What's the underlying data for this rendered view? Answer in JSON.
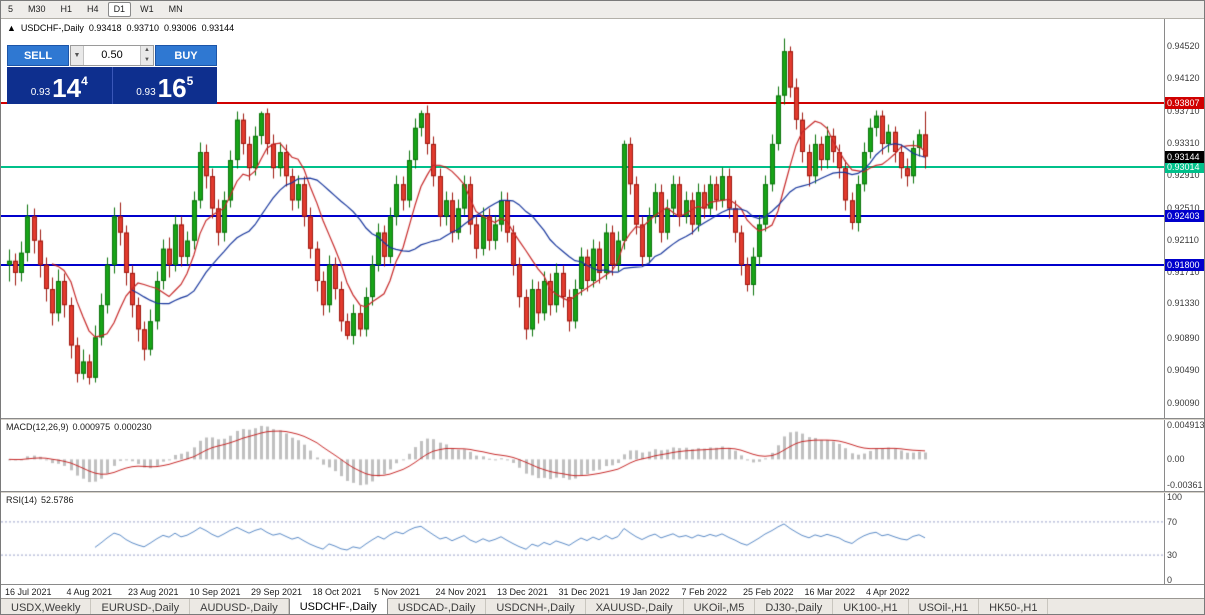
{
  "colors": {
    "up": "#18a418",
    "up_border": "#0a720a",
    "down": "#e23b2e",
    "down_border": "#9e170e",
    "ma_fast": "#c62828",
    "ma_slow": "#16359c",
    "macd_hist": "#c0c0c0",
    "macd_signal": "#c62828",
    "rsi_line": "#5a8ac6",
    "rsi_level": "#9aa0c8"
  },
  "toolbar": {
    "timeframes": [
      "5",
      "M30",
      "H1",
      "H4",
      "D1",
      "W1",
      "MN"
    ],
    "active": "D1"
  },
  "header": {
    "expand_icon": "▲",
    "symbol": "USDCHF-,Daily",
    "open": "0.93418",
    "high": "0.93710",
    "low": "0.93006",
    "close": "0.93144"
  },
  "trade_panel": {
    "sell_label": "SELL",
    "buy_label": "BUY",
    "volume": "0.50",
    "dropdown_icon": "▼",
    "spin_up_icon": "▲",
    "spin_down_icon": "▼",
    "sell_small": "0.93",
    "sell_big": "14",
    "sell_sup": "4",
    "buy_small": "0.93",
    "buy_big": "16",
    "buy_sup": "5"
  },
  "price_axis": {
    "labels": [
      "0.94520",
      "0.94120",
      "0.93710",
      "0.93310",
      "0.92910",
      "0.92510",
      "0.92110",
      "0.91710",
      "0.91330",
      "0.90890",
      "0.90490",
      "0.90090"
    ],
    "range": [
      0.899,
      0.9485
    ]
  },
  "levels": [
    {
      "value": 0.93807,
      "label": "0.93807",
      "color": "#d00000"
    },
    {
      "value": 0.93014,
      "label": "0.93014",
      "color": "#00c08a"
    },
    {
      "value": 0.92403,
      "label": "0.92403",
      "color": "#0000cc"
    },
    {
      "value": 0.918,
      "label": "0.91800",
      "color": "#0000cc"
    }
  ],
  "current_price": {
    "value": 0.93144,
    "label": "0.93144",
    "bg": "#000000"
  },
  "macd_panel": {
    "title": "MACD(12,26,9)",
    "value_main": "0.000975",
    "value_signal": "0.000230",
    "axis": [
      {
        "label": "0.004913",
        "value": 0.004913
      },
      {
        "label": "0.00",
        "value": 0
      },
      {
        "label": "-0.00361",
        "value": -0.00361
      }
    ],
    "range": [
      -0.0045,
      0.0056
    ]
  },
  "rsi_panel": {
    "title": "RSI(14)",
    "value": "52.5786",
    "axis": [
      {
        "label": "100",
        "value": 100
      },
      {
        "label": "70",
        "value": 70
      },
      {
        "label": "30",
        "value": 30
      },
      {
        "label": "0",
        "value": 0
      }
    ],
    "levels": [
      70,
      30
    ],
    "range": [
      0,
      100
    ]
  },
  "time_axis": {
    "labels": [
      "16 Jul 2021",
      "4 Aug 2021",
      "23 Aug 2021",
      "10 Sep 2021",
      "29 Sep 2021",
      "18 Oct 2021",
      "5 Nov 2021",
      "24 Nov 2021",
      "13 Dec 2021",
      "31 Dec 2021",
      "19 Jan 2022",
      "7 Feb 2022",
      "25 Feb 2022",
      "16 Mar 2022",
      "4 Apr 2022"
    ],
    "step": 10
  },
  "tabs": {
    "items": [
      "USDX,Weekly",
      "EURUSD-,Daily",
      "AUDUSD-,Daily",
      "USDCHF-,Daily",
      "USDCAD-,Daily",
      "USDCNH-,Daily",
      "XAUUSD-,Daily",
      "UKOil-,M5",
      "DJ30-,Daily",
      "UK100-,H1",
      "USOil-,H1",
      "HK50-,H1"
    ],
    "active": "USDCHF-,Daily"
  },
  "chart_data": {
    "type": "candlestick",
    "symbol": "USDCHF-,Daily",
    "ohlc_last": {
      "open": 0.93418,
      "high": 0.9371,
      "low": 0.93006,
      "close": 0.93144
    },
    "ma_fast_period": 8,
    "ma_slow_period": 21,
    "macd": {
      "fast": 12,
      "slow": 26,
      "signal": 9
    },
    "rsi_period": 14,
    "candles": [
      [
        0.918,
        0.92,
        0.916,
        0.9185
      ],
      [
        0.9185,
        0.9195,
        0.9155,
        0.917
      ],
      [
        0.917,
        0.921,
        0.916,
        0.9195
      ],
      [
        0.9195,
        0.9255,
        0.9185,
        0.924
      ],
      [
        0.924,
        0.925,
        0.9195,
        0.921
      ],
      [
        0.921,
        0.9225,
        0.9165,
        0.918
      ],
      [
        0.918,
        0.919,
        0.9135,
        0.915
      ],
      [
        0.915,
        0.9165,
        0.9105,
        0.912
      ],
      [
        0.912,
        0.9175,
        0.911,
        0.916
      ],
      [
        0.916,
        0.917,
        0.9115,
        0.913
      ],
      [
        0.913,
        0.914,
        0.9065,
        0.908
      ],
      [
        0.908,
        0.909,
        0.9035,
        0.9045
      ],
      [
        0.9045,
        0.9075,
        0.9038,
        0.906
      ],
      [
        0.906,
        0.907,
        0.9032,
        0.904
      ],
      [
        0.904,
        0.9105,
        0.9035,
        0.909
      ],
      [
        0.909,
        0.9145,
        0.908,
        0.913
      ],
      [
        0.913,
        0.919,
        0.912,
        0.918
      ],
      [
        0.918,
        0.9252,
        0.917,
        0.924
      ],
      [
        0.924,
        0.9258,
        0.9205,
        0.922
      ],
      [
        0.922,
        0.923,
        0.9155,
        0.917
      ],
      [
        0.917,
        0.918,
        0.9115,
        0.913
      ],
      [
        0.913,
        0.914,
        0.9085,
        0.91
      ],
      [
        0.91,
        0.911,
        0.9062,
        0.9075
      ],
      [
        0.9075,
        0.9125,
        0.9068,
        0.911
      ],
      [
        0.911,
        0.9172,
        0.91,
        0.916
      ],
      [
        0.916,
        0.9212,
        0.915,
        0.92
      ],
      [
        0.92,
        0.9215,
        0.9165,
        0.918
      ],
      [
        0.918,
        0.9242,
        0.9172,
        0.923
      ],
      [
        0.923,
        0.924,
        0.9178,
        0.919
      ],
      [
        0.919,
        0.9222,
        0.918,
        0.921
      ],
      [
        0.921,
        0.9272,
        0.92,
        0.926
      ],
      [
        0.926,
        0.9332,
        0.925,
        0.932
      ],
      [
        0.932,
        0.933,
        0.9275,
        0.929
      ],
      [
        0.929,
        0.93,
        0.9238,
        0.925
      ],
      [
        0.925,
        0.9262,
        0.9205,
        0.922
      ],
      [
        0.922,
        0.9272,
        0.921,
        0.926
      ],
      [
        0.926,
        0.9322,
        0.9252,
        0.931
      ],
      [
        0.931,
        0.9371,
        0.93,
        0.936
      ],
      [
        0.936,
        0.9368,
        0.9318,
        0.933
      ],
      [
        0.933,
        0.934,
        0.9285,
        0.93
      ],
      [
        0.93,
        0.9352,
        0.9292,
        0.934
      ],
      [
        0.934,
        0.9371,
        0.933,
        0.9368
      ],
      [
        0.9368,
        0.9375,
        0.9318,
        0.933
      ],
      [
        0.933,
        0.9342,
        0.9288,
        0.93
      ],
      [
        0.93,
        0.9332,
        0.929,
        0.932
      ],
      [
        0.932,
        0.933,
        0.9278,
        0.929
      ],
      [
        0.929,
        0.93,
        0.9248,
        0.926
      ],
      [
        0.926,
        0.9292,
        0.925,
        0.928
      ],
      [
        0.928,
        0.929,
        0.9228,
        0.924
      ],
      [
        0.924,
        0.9252,
        0.9188,
        0.92
      ],
      [
        0.92,
        0.921,
        0.9148,
        0.916
      ],
      [
        0.916,
        0.9172,
        0.9118,
        0.913
      ],
      [
        0.913,
        0.9192,
        0.9122,
        0.918
      ],
      [
        0.918,
        0.919,
        0.9138,
        0.915
      ],
      [
        0.915,
        0.916,
        0.9098,
        0.911
      ],
      [
        0.911,
        0.912,
        0.9088,
        0.9092
      ],
      [
        0.9092,
        0.9132,
        0.9082,
        0.912
      ],
      [
        0.912,
        0.913,
        0.9092,
        0.91
      ],
      [
        0.91,
        0.9152,
        0.9092,
        0.914
      ],
      [
        0.914,
        0.9192,
        0.913,
        0.918
      ],
      [
        0.918,
        0.9232,
        0.9172,
        0.922
      ],
      [
        0.922,
        0.923,
        0.9178,
        0.919
      ],
      [
        0.919,
        0.9252,
        0.9182,
        0.924
      ],
      [
        0.924,
        0.9292,
        0.923,
        0.928
      ],
      [
        0.928,
        0.929,
        0.9248,
        0.926
      ],
      [
        0.926,
        0.9322,
        0.9252,
        0.931
      ],
      [
        0.931,
        0.9362,
        0.93,
        0.935
      ],
      [
        0.935,
        0.9372,
        0.934,
        0.9368
      ],
      [
        0.9368,
        0.9378,
        0.9318,
        0.933
      ],
      [
        0.933,
        0.934,
        0.9278,
        0.929
      ],
      [
        0.929,
        0.93,
        0.9228,
        0.924
      ],
      [
        0.924,
        0.9272,
        0.923,
        0.926
      ],
      [
        0.926,
        0.927,
        0.9208,
        0.922
      ],
      [
        0.922,
        0.9262,
        0.9212,
        0.925
      ],
      [
        0.925,
        0.9292,
        0.9242,
        0.928
      ],
      [
        0.928,
        0.929,
        0.9218,
        0.923
      ],
      [
        0.923,
        0.924,
        0.9188,
        0.92
      ],
      [
        0.92,
        0.9252,
        0.9192,
        0.924
      ],
      [
        0.924,
        0.925,
        0.9198,
        0.921
      ],
      [
        0.921,
        0.9242,
        0.92,
        0.923
      ],
      [
        0.923,
        0.9272,
        0.9222,
        0.926
      ],
      [
        0.926,
        0.927,
        0.9208,
        0.922
      ],
      [
        0.922,
        0.923,
        0.9168,
        0.918
      ],
      [
        0.918,
        0.919,
        0.9128,
        0.914
      ],
      [
        0.914,
        0.915,
        0.9088,
        0.91
      ],
      [
        0.91,
        0.9162,
        0.9092,
        0.915
      ],
      [
        0.915,
        0.916,
        0.9108,
        0.912
      ],
      [
        0.912,
        0.9172,
        0.9112,
        0.916
      ],
      [
        0.916,
        0.917,
        0.9118,
        0.913
      ],
      [
        0.913,
        0.9182,
        0.9122,
        0.917
      ],
      [
        0.917,
        0.918,
        0.9128,
        0.914
      ],
      [
        0.914,
        0.915,
        0.9098,
        0.911
      ],
      [
        0.911,
        0.9162,
        0.9102,
        0.915
      ],
      [
        0.915,
        0.9202,
        0.9142,
        0.919
      ],
      [
        0.919,
        0.92,
        0.9148,
        0.916
      ],
      [
        0.916,
        0.9212,
        0.9152,
        0.92
      ],
      [
        0.92,
        0.921,
        0.9158,
        0.917
      ],
      [
        0.917,
        0.9232,
        0.9162,
        0.922
      ],
      [
        0.922,
        0.923,
        0.9168,
        0.918
      ],
      [
        0.918,
        0.9222,
        0.9172,
        0.921
      ],
      [
        0.921,
        0.9335,
        0.92,
        0.933
      ],
      [
        0.933,
        0.9338,
        0.9268,
        0.928
      ],
      [
        0.928,
        0.929,
        0.9218,
        0.923
      ],
      [
        0.923,
        0.924,
        0.9178,
        0.919
      ],
      [
        0.919,
        0.9252,
        0.9182,
        0.924
      ],
      [
        0.924,
        0.9282,
        0.9232,
        0.927
      ],
      [
        0.927,
        0.928,
        0.9208,
        0.922
      ],
      [
        0.922,
        0.9262,
        0.9212,
        0.925
      ],
      [
        0.925,
        0.9292,
        0.924,
        0.928
      ],
      [
        0.928,
        0.929,
        0.9228,
        0.924
      ],
      [
        0.924,
        0.9272,
        0.9232,
        0.926
      ],
      [
        0.926,
        0.927,
        0.9218,
        0.923
      ],
      [
        0.923,
        0.9282,
        0.9222,
        0.927
      ],
      [
        0.927,
        0.928,
        0.9238,
        0.925
      ],
      [
        0.925,
        0.9292,
        0.9242,
        0.928
      ],
      [
        0.928,
        0.929,
        0.9248,
        0.926
      ],
      [
        0.926,
        0.9302,
        0.9252,
        0.929
      ],
      [
        0.929,
        0.93,
        0.9238,
        0.925
      ],
      [
        0.925,
        0.926,
        0.9208,
        0.922
      ],
      [
        0.922,
        0.923,
        0.9168,
        0.918
      ],
      [
        0.918,
        0.919,
        0.9148,
        0.9155
      ],
      [
        0.9155,
        0.9202,
        0.9142,
        0.919
      ],
      [
        0.919,
        0.9242,
        0.918,
        0.923
      ],
      [
        0.923,
        0.9292,
        0.9222,
        0.928
      ],
      [
        0.928,
        0.9342,
        0.9272,
        0.933
      ],
      [
        0.933,
        0.9402,
        0.9322,
        0.939
      ],
      [
        0.939,
        0.9462,
        0.938,
        0.9445
      ],
      [
        0.9445,
        0.9452,
        0.9388,
        0.94
      ],
      [
        0.94,
        0.9412,
        0.9348,
        0.936
      ],
      [
        0.936,
        0.937,
        0.9308,
        0.932
      ],
      [
        0.932,
        0.933,
        0.9278,
        0.929
      ],
      [
        0.929,
        0.9342,
        0.9282,
        0.933
      ],
      [
        0.933,
        0.934,
        0.9298,
        0.931
      ],
      [
        0.931,
        0.9352,
        0.93,
        0.934
      ],
      [
        0.934,
        0.935,
        0.9308,
        0.932
      ],
      [
        0.932,
        0.933,
        0.9288,
        0.93
      ],
      [
        0.93,
        0.931,
        0.9248,
        0.926
      ],
      [
        0.926,
        0.927,
        0.9225,
        0.9232
      ],
      [
        0.9232,
        0.9292,
        0.9222,
        0.928
      ],
      [
        0.928,
        0.9332,
        0.9272,
        0.932
      ],
      [
        0.932,
        0.9362,
        0.9312,
        0.935
      ],
      [
        0.935,
        0.9372,
        0.934,
        0.9365
      ],
      [
        0.9365,
        0.9372,
        0.9318,
        0.933
      ],
      [
        0.933,
        0.9355,
        0.932,
        0.9345
      ],
      [
        0.9345,
        0.9352,
        0.9308,
        0.932
      ],
      [
        0.932,
        0.933,
        0.9288,
        0.93
      ],
      [
        0.93,
        0.9312,
        0.9278,
        0.929
      ],
      [
        0.929,
        0.9335,
        0.9282,
        0.9325
      ],
      [
        0.9325,
        0.9348,
        0.9315,
        0.93418
      ],
      [
        0.93418,
        0.9371,
        0.93006,
        0.93144
      ]
    ]
  }
}
